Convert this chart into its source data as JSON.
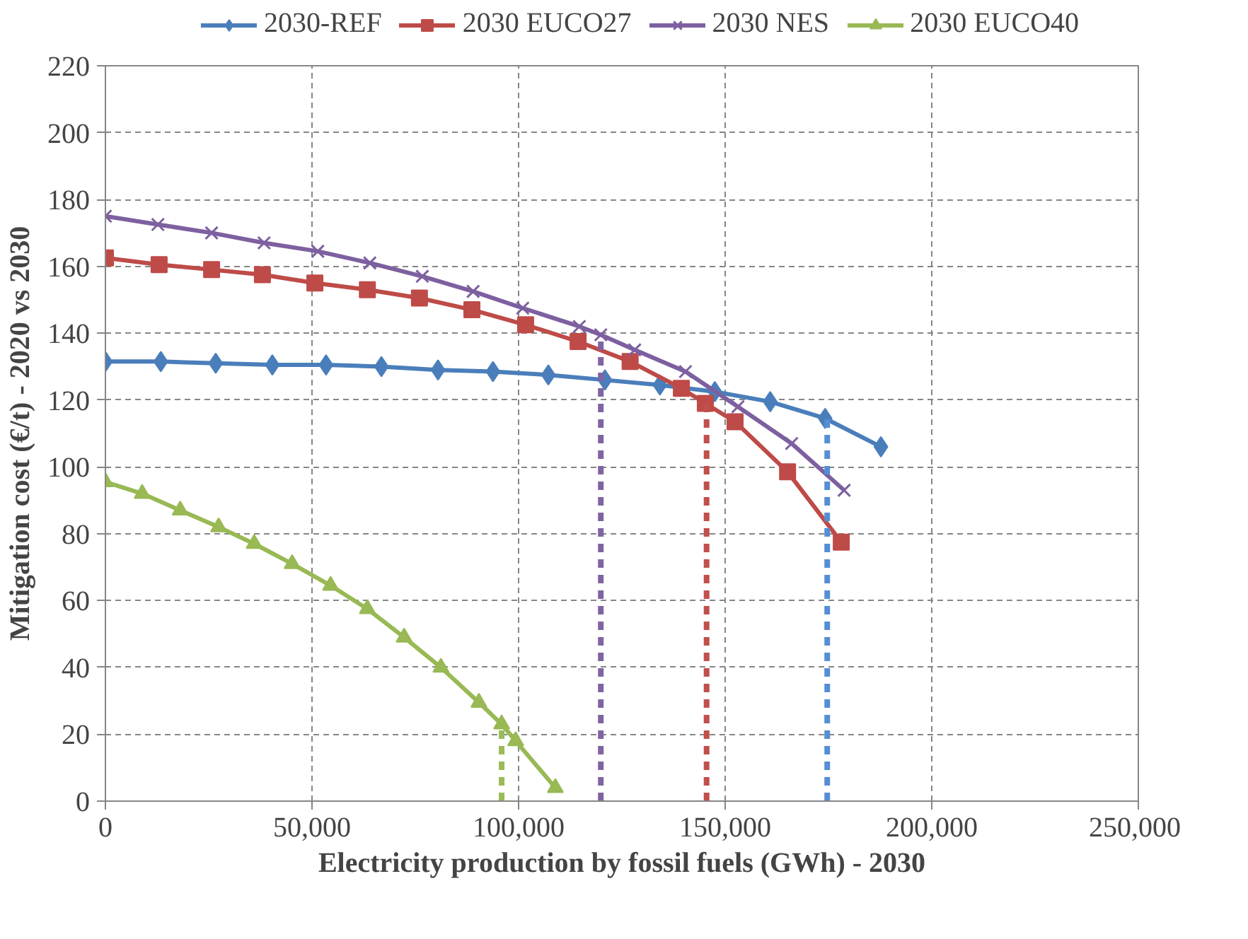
{
  "chart_data": {
    "type": "line",
    "xlabel": "Electricity production by fossil fuels (GWh) - 2030",
    "ylabel": "Mitigation cost (€/t) - 2020 vs 2030",
    "xlim": [
      0,
      250000
    ],
    "xticks": [
      {
        "value": 0,
        "label": "0"
      },
      {
        "value": 50000,
        "label": "50,000"
      },
      {
        "value": 100000,
        "label": "100,000"
      },
      {
        "value": 150000,
        "label": "150,000"
      },
      {
        "value": 200000,
        "label": "200,000"
      },
      {
        "value": 250000,
        "label": "250,000"
      }
    ],
    "ylim": [
      0,
      220
    ],
    "yticks": [
      0,
      20,
      40,
      60,
      80,
      100,
      120,
      140,
      160,
      180,
      200,
      220
    ],
    "grid": true,
    "legend": "top",
    "line_style": "solid",
    "series": [
      {
        "name": "2030-REF",
        "color": "#4a7ebb",
        "marker": "diamond",
        "x": [
          0,
          13400,
          26700,
          40400,
          53400,
          66800,
          80500,
          93800,
          107200,
          120900,
          134200,
          147500,
          160900,
          174200,
          187700
        ],
        "values": [
          131.5,
          131.5,
          131,
          130.5,
          130.5,
          130,
          129,
          128.5,
          127.5,
          126,
          124.5,
          122.5,
          119.5,
          114.5,
          106
        ]
      },
      {
        "name": "2030 EUCO27",
        "color": "#be4b48",
        "marker": "square",
        "x": [
          0,
          13000,
          25700,
          38000,
          50700,
          63400,
          76000,
          88700,
          101700,
          114400,
          127000,
          139400,
          145200,
          152400,
          165100,
          178100
        ],
        "values": [
          162.5,
          160.5,
          159,
          157.5,
          155,
          153,
          150.5,
          147,
          142.5,
          137.5,
          131.5,
          123.5,
          119,
          113.5,
          98.5,
          77.5
        ]
      },
      {
        "name": "2030 NES",
        "color": "#7d60a0",
        "marker": "cross",
        "x": [
          0,
          12700,
          25700,
          38400,
          51400,
          64000,
          76700,
          89000,
          101000,
          114700,
          119900,
          128100,
          140400,
          153100,
          166100,
          178800
        ],
        "values": [
          175,
          172.5,
          170,
          167,
          164.5,
          161,
          157,
          152.5,
          147.5,
          142,
          139.5,
          135,
          128.5,
          118,
          107,
          93
        ]
      },
      {
        "name": "2030 EUCO40",
        "color": "#98b954",
        "marker": "triangle",
        "x": [
          0,
          8900,
          18100,
          27400,
          36000,
          45200,
          54500,
          63400,
          72300,
          81200,
          90400,
          95900,
          99300,
          108900
        ],
        "values": [
          95.5,
          92,
          87,
          82,
          77,
          71,
          64.5,
          57.5,
          49,
          40,
          29.5,
          23,
          18,
          4
        ]
      },
      {
        "color": "#558ed5",
        "line_style": "dashed",
        "marker": "none",
        "x": [
          174700,
          174700
        ],
        "values": [
          0,
          114.5
        ]
      },
      {
        "color": "#c0504d",
        "line_style": "dashed",
        "marker": "none",
        "x": [
          145500,
          145500
        ],
        "values": [
          0,
          119
        ]
      },
      {
        "color": "#8064a2",
        "line_style": "dashed",
        "marker": "none",
        "x": [
          119900,
          119900
        ],
        "values": [
          0,
          139.5
        ]
      },
      {
        "color": "#9bbb59",
        "line_style": "dashed",
        "marker": "none",
        "x": [
          95900,
          95900
        ],
        "values": [
          0,
          23
        ]
      }
    ]
  }
}
